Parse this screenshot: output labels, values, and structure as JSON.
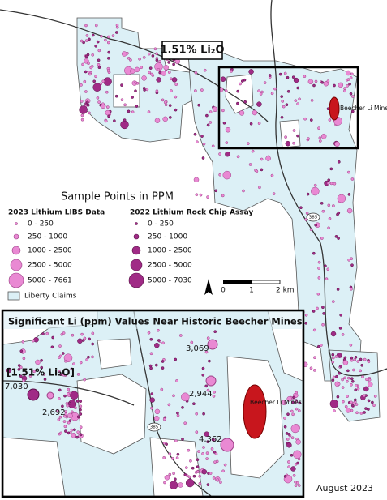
{
  "map": {
    "callout": "1.51% Li₂O",
    "mine_label": "Beecher Li Mines",
    "road_shield": "385"
  },
  "legend": {
    "title": "Sample Points in PPM",
    "libs": {
      "heading": "2023 Lithium LIBS Data",
      "classes": [
        "0 - 250",
        "250 - 1000",
        "1000 - 2500",
        "2500 - 5000",
        "5000 - 7661"
      ]
    },
    "rock_chip": {
      "heading": "2022 Lithium Rock Chip Assay",
      "classes": [
        "0 - 250",
        "250 - 1000",
        "1000 - 2500",
        "2500 - 5000",
        "5000 - 7030"
      ]
    },
    "claims": "Liberty Claims"
  },
  "scale_bar": {
    "labels": [
      "0",
      "1",
      "2 km"
    ]
  },
  "inset": {
    "title": "Significant Li (ppm) Values Near Historic Beecher Mines",
    "callout": "[1.51% Li₂O]",
    "labels": [
      "7,030",
      "2,692",
      "3,069",
      "2,944",
      "4,362"
    ],
    "mine_label": "Beecher Li Mines",
    "road_shield": "385"
  },
  "date": "August 2023"
}
